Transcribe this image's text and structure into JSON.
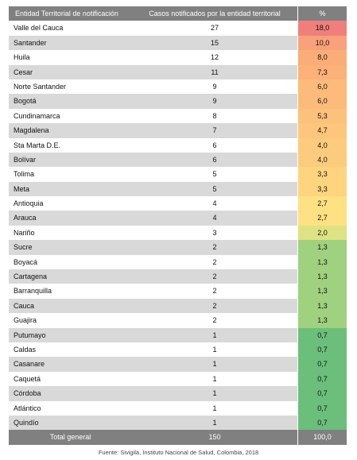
{
  "table": {
    "headers": [
      "Entidad Territorial de notificación",
      "Casos notificados por la entidad territorial",
      "%"
    ],
    "rows": [
      {
        "entity": "Valle del Cauca",
        "cases": "27",
        "pct": "18,0",
        "color": "#f07f7c"
      },
      {
        "entity": "Santander",
        "cases": "15",
        "pct": "10,0",
        "color": "#f9a17a"
      },
      {
        "entity": "Huila",
        "cases": "12",
        "pct": "8,0",
        "color": "#fbad78"
      },
      {
        "entity": "Cesar",
        "cases": "11",
        "pct": "7,3",
        "color": "#fbb178"
      },
      {
        "entity": "Norte Santander",
        "cases": "9",
        "pct": "6,0",
        "color": "#fcbb7a"
      },
      {
        "entity": "Bogotá",
        "cases": "9",
        "pct": "6,0",
        "color": "#fcbb7a"
      },
      {
        "entity": "Cundinamarca",
        "cases": "8",
        "pct": "5,3",
        "color": "#fcc17b"
      },
      {
        "entity": "Magdalena",
        "cases": "7",
        "pct": "4,7",
        "color": "#fdc67c"
      },
      {
        "entity": "Sta Marta D.E.",
        "cases": "6",
        "pct": "4,0",
        "color": "#fdcb7d"
      },
      {
        "entity": "Bolívar",
        "cases": "6",
        "pct": "4,0",
        "color": "#fdcb7d"
      },
      {
        "entity": "Tolima",
        "cases": "5",
        "pct": "3,3",
        "color": "#fed47f"
      },
      {
        "entity": "Meta",
        "cases": "5",
        "pct": "3,3",
        "color": "#fed47f"
      },
      {
        "entity": "Antioquia",
        "cases": "4",
        "pct": "2,7",
        "color": "#fee182"
      },
      {
        "entity": "Arauca",
        "cases": "4",
        "pct": "2,7",
        "color": "#fee182"
      },
      {
        "entity": "Nariño",
        "cases": "3",
        "pct": "2,0",
        "color": "#dfe283"
      },
      {
        "entity": "Sucre",
        "cases": "2",
        "pct": "1,3",
        "color": "#9fd17f"
      },
      {
        "entity": "Boyacá",
        "cases": "2",
        "pct": "1,3",
        "color": "#9fd17f"
      },
      {
        "entity": "Cartagena",
        "cases": "2",
        "pct": "1,3",
        "color": "#9fd17f"
      },
      {
        "entity": "Barranquilla",
        "cases": "2",
        "pct": "1,3",
        "color": "#9fd17f"
      },
      {
        "entity": "Cauca",
        "cases": "2",
        "pct": "1,3",
        "color": "#9fd17f"
      },
      {
        "entity": "Guajira",
        "cases": "2",
        "pct": "1,3",
        "color": "#9fd17f"
      },
      {
        "entity": "Putumayo",
        "cases": "1",
        "pct": "0,7",
        "color": "#6bbf7b"
      },
      {
        "entity": "Caldas",
        "cases": "1",
        "pct": "0,7",
        "color": "#6bbf7b"
      },
      {
        "entity": "Casanare",
        "cases": "1",
        "pct": "0,7",
        "color": "#6bbf7b"
      },
      {
        "entity": "Caquetá",
        "cases": "1",
        "pct": "0,7",
        "color": "#6bbf7b"
      },
      {
        "entity": "Córdoba",
        "cases": "1",
        "pct": "0,7",
        "color": "#6bbf7b"
      },
      {
        "entity": "Atlántico",
        "cases": "1",
        "pct": "0,7",
        "color": "#6bbf7b"
      },
      {
        "entity": "Quindío",
        "cases": "1",
        "pct": "0,7",
        "color": "#6bbf7b"
      }
    ],
    "total": {
      "label": "Total general",
      "cases": "150",
      "pct": "100,0"
    }
  },
  "source": "Fuente: Sivigila, Instituto Nacional de Salud, Colombia, 2018"
}
